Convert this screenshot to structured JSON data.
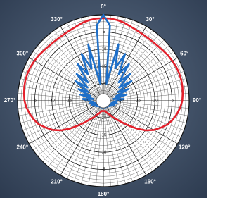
{
  "chart_data": {
    "type": "polar",
    "direction": "clockwise",
    "zero_location": "top",
    "rlim": [
      -25,
      0
    ],
    "rticks": [
      -20,
      -15,
      -10,
      -5
    ],
    "angle_ticks": [
      {
        "value": 0,
        "label": "0°"
      },
      {
        "value": 30,
        "label": "30°"
      },
      {
        "value": 60,
        "label": "60°"
      },
      {
        "value": 90,
        "label": "90°"
      },
      {
        "value": 120,
        "label": "120°"
      },
      {
        "value": 150,
        "label": "150°"
      },
      {
        "value": 180,
        "label": "180°"
      },
      {
        "value": 210,
        "label": "210°"
      },
      {
        "value": 240,
        "label": "240°"
      },
      {
        "value": 270,
        "label": "270°"
      },
      {
        "value": 300,
        "label": "300°"
      },
      {
        "value": 330,
        "label": "330°"
      }
    ],
    "grid": true,
    "x": [
      0,
      5,
      10,
      15,
      20,
      25,
      30,
      35,
      40,
      45,
      50,
      55,
      60,
      65,
      70,
      75,
      80,
      85,
      90,
      95,
      100,
      105,
      110,
      115,
      120,
      125,
      130,
      135,
      140,
      145,
      150,
      155,
      160,
      165,
      170,
      175,
      180,
      185,
      190,
      195,
      200,
      205,
      210,
      215,
      220,
      225,
      230,
      235,
      240,
      245,
      250,
      255,
      260,
      265,
      270,
      275,
      280,
      285,
      290,
      295,
      300,
      305,
      310,
      315,
      320,
      325,
      330,
      335,
      340,
      345,
      350,
      355
    ],
    "series": [
      {
        "color": "#e3202b",
        "values": [
          -1,
          -1,
          -1.2,
          -1.5,
          -2,
          -2.3,
          -2.5,
          -2.6,
          -2.6,
          -2.5,
          -2.3,
          -2,
          -1.8,
          -1.6,
          -1.5,
          -1.5,
          -1.6,
          -1.8,
          -2,
          -2.5,
          -3.2,
          -4,
          -5,
          -6.5,
          -8,
          -10,
          -12.5,
          -15,
          -17,
          -18.5,
          -19.5,
          -20.5,
          -21,
          -21.5,
          -22,
          -22,
          -22,
          -22,
          -22,
          -21.5,
          -21,
          -20.5,
          -19.5,
          -18.5,
          -17,
          -15,
          -12.5,
          -10,
          -8,
          -6.5,
          -5,
          -4,
          -3.2,
          -2.5,
          -2,
          -1.8,
          -1.6,
          -1.5,
          -1.5,
          -1.6,
          -1.8,
          -2,
          -2.3,
          -2.5,
          -2.6,
          -2.6,
          -2.5,
          -2.3,
          -2,
          -1.5,
          -1.2,
          -1
        ]
      },
      {
        "color": "#1e6fc8",
        "values": [
          0,
          -3,
          -20,
          -8,
          -15,
          -10,
          -16,
          -12,
          -18,
          -14,
          -19,
          -15,
          -20,
          -17,
          -21,
          -18,
          -22,
          -19,
          -21,
          -22,
          -21,
          -22.5,
          -21.5,
          -23,
          -22,
          -23,
          -22.5,
          -23,
          -23,
          -23,
          -23,
          -23.5,
          -23,
          -23.5,
          -23,
          -23.5,
          -23.5,
          -23.5,
          -23,
          -23.5,
          -23,
          -23.5,
          -23,
          -23,
          -23,
          -23,
          -22.5,
          -23,
          -22,
          -23,
          -21.5,
          -22.5,
          -21,
          -22,
          -21,
          -19,
          -22,
          -18,
          -21,
          -17,
          -20,
          -15,
          -19,
          -14,
          -18,
          -12,
          -16,
          -10,
          -15,
          -8,
          -20,
          -3
        ]
      }
    ]
  }
}
